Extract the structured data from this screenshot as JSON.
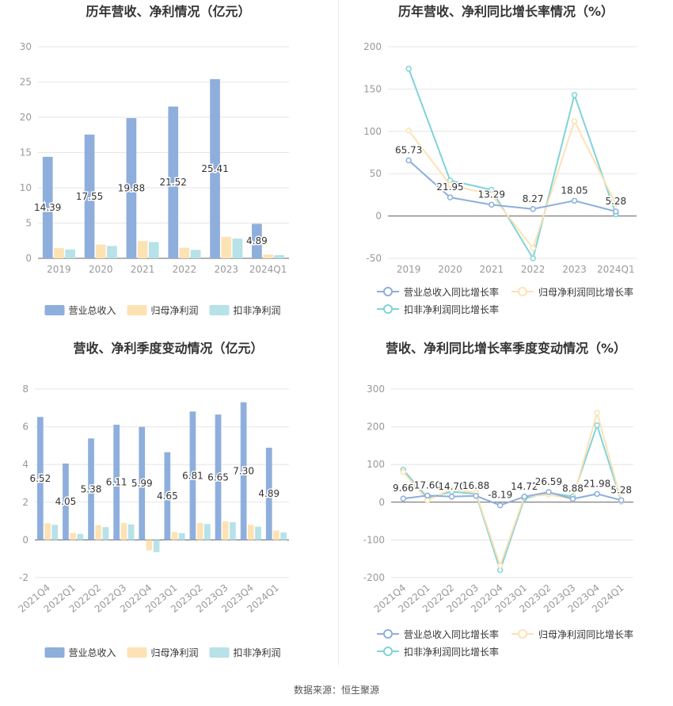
{
  "colors": {
    "revenue": "#8eaedc",
    "net_profit": "#fde2b4",
    "deducted_profit": "#b6e2e8",
    "revenue_line": "#8eaedc",
    "net_line": "#fde2b4",
    "deducted_line": "#80d3d9",
    "grid": "#e6e6e6",
    "axis_text": "#999999",
    "title": "#333333"
  },
  "source": "数据来源：恒生聚源",
  "chart_data": [
    {
      "type": "bar",
      "title": "历年营收、净利情况（亿元）",
      "categories": [
        "2019",
        "2020",
        "2021",
        "2022",
        "2023",
        "2024Q1"
      ],
      "ylim": [
        0,
        30
      ],
      "yticks": [
        "0",
        "5",
        "10",
        "15",
        "20",
        "25",
        "30"
      ],
      "series": [
        {
          "name": "营业总收入",
          "values": [
            14.39,
            17.55,
            19.88,
            21.52,
            25.41,
            4.89
          ],
          "labels": [
            "14.39",
            "17.55",
            "19.88",
            "21.52",
            "25.41",
            "4.89"
          ]
        },
        {
          "name": "归母净利润",
          "values": [
            1.45,
            1.95,
            2.45,
            1.5,
            3.05,
            0.55
          ]
        },
        {
          "name": "扣非净利润",
          "values": [
            1.25,
            1.75,
            2.3,
            1.2,
            2.8,
            0.45
          ]
        }
      ],
      "legend": "bottom",
      "grid": true
    },
    {
      "type": "line",
      "title": "历年营收、净利同比增长率情况（%）",
      "categories": [
        "2019",
        "2020",
        "2021",
        "2022",
        "2023",
        "2024Q1"
      ],
      "ylim": [
        -50,
        200
      ],
      "yticks": [
        "-50",
        "0",
        "50",
        "100",
        "150",
        "200"
      ],
      "series": [
        {
          "name": "营业总收入同比增长率",
          "values": [
            65.73,
            21.95,
            13.29,
            8.27,
            18.05,
            5.28
          ],
          "labels": [
            "65.73",
            "21.95",
            "13.29",
            "8.27",
            "18.05",
            "5.28"
          ]
        },
        {
          "name": "归母净利润同比增长率",
          "values": [
            101,
            37,
            25,
            -38,
            112,
            14
          ]
        },
        {
          "name": "扣非净利润同比增长率",
          "values": [
            174,
            42,
            31,
            -50,
            143,
            2
          ]
        }
      ],
      "legend": "bottom",
      "grid": true
    },
    {
      "type": "bar",
      "title": "营收、净利季度变动情况（亿元）",
      "categories": [
        "2021Q4",
        "2022Q1",
        "2022Q2",
        "2022Q3",
        "2022Q4",
        "2023Q1",
        "2023Q2",
        "2023Q3",
        "2023Q4",
        "2024Q1"
      ],
      "ylim": [
        -2,
        8
      ],
      "yticks": [
        "-2",
        "0",
        "2",
        "4",
        "6",
        "8"
      ],
      "series": [
        {
          "name": "营业总收入",
          "values": [
            6.52,
            4.05,
            5.38,
            6.11,
            5.99,
            4.65,
            6.81,
            6.65,
            7.3,
            4.89
          ],
          "labels": [
            "6.52",
            "4.05",
            "5.38",
            "6.11",
            "5.99",
            "4.65",
            "6.81",
            "6.65",
            "7.30",
            "4.89"
          ]
        },
        {
          "name": "归母净利润",
          "values": [
            0.88,
            0.37,
            0.78,
            0.9,
            -0.55,
            0.42,
            0.9,
            0.98,
            0.8,
            0.5
          ]
        },
        {
          "name": "扣非净利润",
          "values": [
            0.8,
            0.32,
            0.68,
            0.82,
            -0.65,
            0.36,
            0.84,
            0.94,
            0.7,
            0.4
          ]
        }
      ],
      "legend": "bottom",
      "grid": true
    },
    {
      "type": "line",
      "title": "营收、净利同比增长率季度变动情况（%）",
      "categories": [
        "2021Q4",
        "2022Q1",
        "2022Q2",
        "2022Q3",
        "2022Q4",
        "2023Q1",
        "2023Q2",
        "2023Q3",
        "2023Q4",
        "2024Q1"
      ],
      "ylim": [
        -200,
        300
      ],
      "yticks": [
        "-200",
        "-100",
        "0",
        "100",
        "200",
        "300"
      ],
      "series": [
        {
          "name": "营业总收入同比增长率",
          "values": [
            9.66,
            17.6,
            14.7,
            16.88,
            -8.19,
            14.72,
            26.59,
            8.88,
            21.98,
            5.28
          ],
          "labels": [
            "9.66",
            "17.60",
            "14.70",
            "16.88",
            "-8.19",
            "14.72",
            "26.59",
            "8.88",
            "21.98",
            "5.28"
          ]
        },
        {
          "name": "归母净利润同比增长率",
          "values": [
            80,
            5,
            35,
            25,
            -168,
            15,
            20,
            8,
            237,
            3
          ]
        },
        {
          "name": "扣非净利润同比增长率",
          "values": [
            86,
            12,
            28,
            22,
            -180,
            10,
            25,
            15,
            204,
            2
          ]
        }
      ],
      "legend": "bottom",
      "grid": true
    }
  ]
}
